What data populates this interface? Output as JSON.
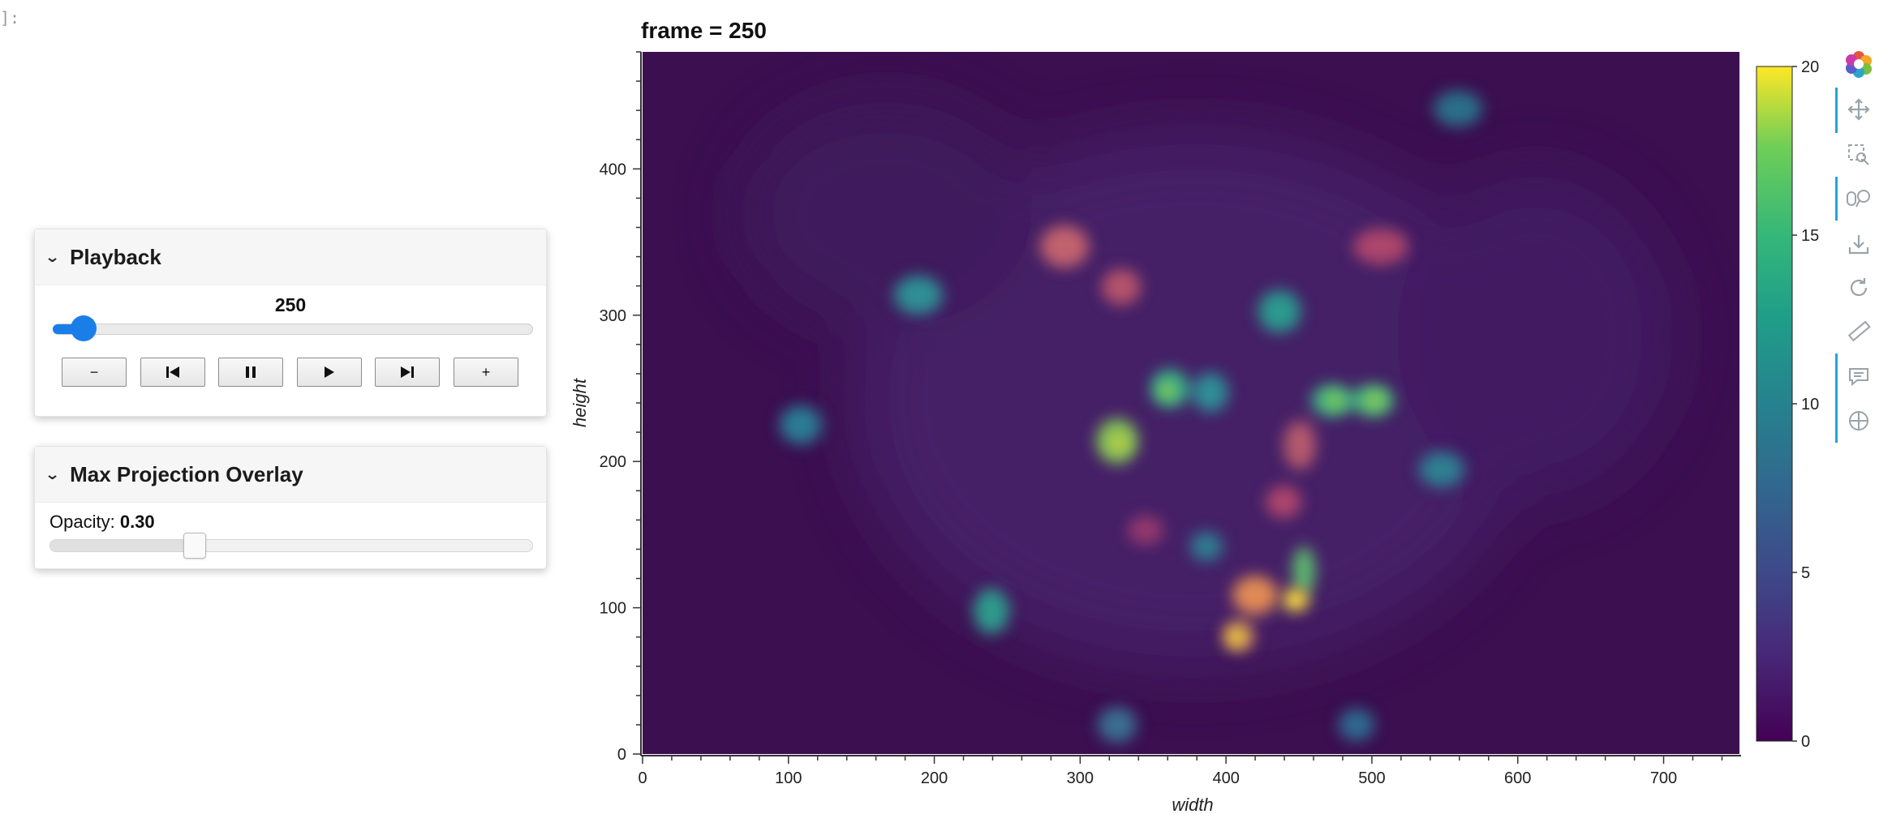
{
  "notebook": {
    "prompt_fragment": "]:"
  },
  "playback": {
    "title": "Playback",
    "frame_value": "250",
    "slider_fraction": 0.05,
    "buttons": [
      {
        "name": "step-back-button",
        "glyph": "−"
      },
      {
        "name": "first-frame-button",
        "glyph": "⏮"
      },
      {
        "name": "pause-button",
        "glyph": "⏸"
      },
      {
        "name": "play-button",
        "glyph": "▶"
      },
      {
        "name": "last-frame-button",
        "glyph": "⏭"
      },
      {
        "name": "step-forward-button",
        "glyph": "+"
      }
    ]
  },
  "overlay": {
    "title": "Max Projection Overlay",
    "opacity_label": "Opacity:",
    "opacity_value": "0.30",
    "opacity_fraction": 0.3
  },
  "plot": {
    "title": "frame = 250",
    "xlabel": "width",
    "ylabel": "height",
    "x_ticks": [
      "0",
      "100",
      "200",
      "300",
      "400",
      "500",
      "600",
      "700"
    ],
    "y_ticks": [
      "0",
      "100",
      "200",
      "300",
      "400"
    ],
    "colorbar_ticks": [
      "0",
      "5",
      "10",
      "15",
      "20"
    ]
  },
  "chart_data": {
    "type": "heatmap",
    "title": "frame = 250",
    "xlabel": "width",
    "ylabel": "height",
    "xlim": [
      0,
      752
    ],
    "ylim": [
      0,
      480
    ],
    "colorscale": "viridis",
    "clim": [
      0,
      20
    ],
    "colorbar_ticks": [
      0,
      5,
      10,
      15,
      20
    ]
  },
  "toolbar": {
    "items": [
      "bokeh-logo-icon",
      "pan-icon",
      "box-zoom-icon",
      "wheel-zoom-icon",
      "save-icon",
      "reset-icon",
      "measure-icon",
      "hover-icon",
      "crosshair-icon"
    ]
  }
}
